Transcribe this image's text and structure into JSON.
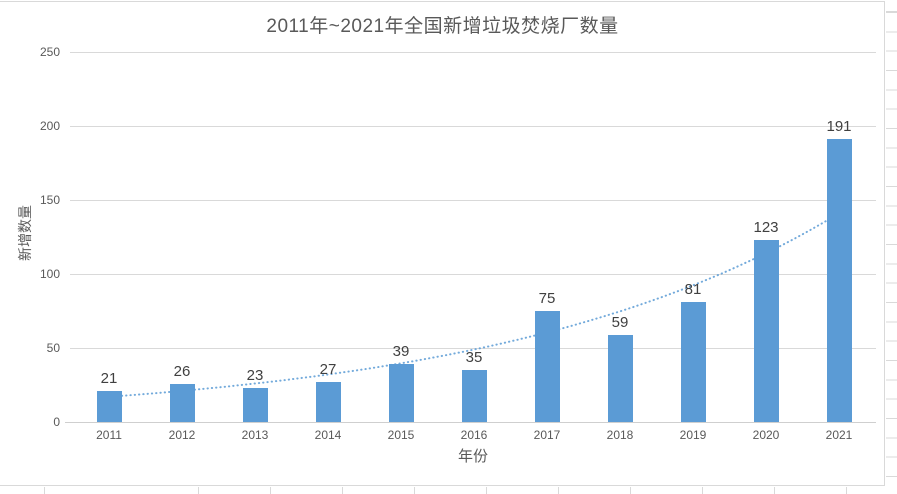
{
  "chart_data": {
    "type": "bar",
    "title": "2011年~2021年全国新增垃圾焚烧厂数量",
    "categories": [
      "2011",
      "2012",
      "2013",
      "2014",
      "2015",
      "2016",
      "2017",
      "2018",
      "2019",
      "2020",
      "2021"
    ],
    "values": [
      21,
      26,
      23,
      27,
      39,
      35,
      75,
      59,
      81,
      123,
      191
    ],
    "xlabel": "年份",
    "ylabel": "新增数量",
    "ylim": [
      0,
      250
    ],
    "y_ticks": [
      0,
      50,
      100,
      150,
      200,
      250
    ],
    "grid": true,
    "legend": "none",
    "data_labels": true,
    "colors": {
      "bar": "#5B9BD5",
      "data_label": "#404040",
      "axis_text": "#595959",
      "title_text": "#595959",
      "gridline": "#D9D9D9",
      "axis_line": "#CFCFCF"
    },
    "trendline": {
      "type": "exponential",
      "style": "dotted",
      "color": "#5B9BD5"
    }
  },
  "spreadsheet": {
    "cell_line_color": "#D9D9D9"
  }
}
